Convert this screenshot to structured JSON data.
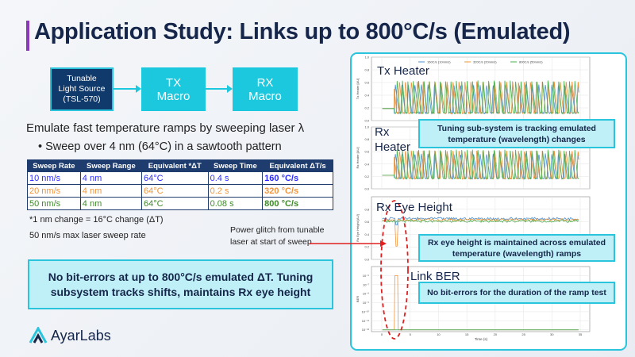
{
  "title": "Application Study: Links up to 800°C/s (Emulated)",
  "diagram": {
    "source": "Tunable\nLight Source\n(TSL-570)",
    "tx": "TX\nMacro",
    "rx": "RX\nMacro"
  },
  "intro": "Emulate fast temperature ramps by sweeping laser λ",
  "bullet": "• Sweep over 4 nm (64°C) in a sawtooth pattern",
  "table": {
    "headers": [
      "Sweep Rate",
      "Sweep Range",
      "Equivalent *ΔT",
      "Sweep Time",
      "Equivalent ΔT/s"
    ],
    "rows": [
      {
        "color": "#2b2bff",
        "cells": [
          "10 nm/s",
          "4 nm",
          "64°C",
          "0.4 s",
          "160 °C/s"
        ]
      },
      {
        "color": "#f0953a",
        "cells": [
          "20 nm/s",
          "4 nm",
          "64°C",
          "0.2 s",
          "320 °C/s"
        ]
      },
      {
        "color": "#3f8a2a",
        "cells": [
          "50 nm/s",
          "4 nm",
          "64°C",
          "0.08 s",
          "800 °C/s"
        ]
      }
    ]
  },
  "footnote1": "*1 nm change = 16°C change (ΔT)",
  "footnote2": "50 nm/s max laser sweep rate",
  "glitch_note": "Power glitch from tunable\nlaser at start of sweep",
  "summary": "No bit-errors at up to 800°C/s emulated ΔT. Tuning subsystem tracks shifts, maintains Rx eye height",
  "logo": "AyarLabs",
  "annotations": {
    "tuning": "Tuning sub-system is tracking emulated\ntemperature (wavelength) changes",
    "eye": "Rx eye height is maintained across emulated\ntemperature (wavelength) ramps",
    "ber": "No bit-errors for the duration of the ramp test"
  },
  "plot_labels": {
    "tx": "Tx Heater",
    "rx": "Rx\nHeater",
    "eye": "Rx Eye Height",
    "ber": "Link BER"
  },
  "chart_data": {
    "type": "line",
    "xlabel": "Time (s)",
    "xlim": [
      0,
      35
    ],
    "xticks": [
      0,
      5,
      10,
      15,
      20,
      25,
      30,
      35
    ],
    "legend": "top",
    "series": [
      {
        "name": "160C/s (10nm/s)",
        "color": "#4a8fd0"
      },
      {
        "name": "320C/s (20nm/s)",
        "color": "#f0953a"
      },
      {
        "name": "800C/s (50nm/s)",
        "color": "#4caf50"
      }
    ],
    "subplots": [
      {
        "ylabel": "Tx Heater [AU]",
        "ylim": [
          0,
          1
        ],
        "yticks": [
          "0.0",
          "0.2",
          "0.4",
          "0.6",
          "0.8",
          "1.0"
        ],
        "baseline": 0.19,
        "ramp_start": 2.2,
        "range": [
          0.12,
          0.63
        ]
      },
      {
        "ylabel": "Rx Heater [AU]",
        "ylim": [
          0,
          1
        ],
        "yticks": [
          "0.0",
          "0.2",
          "0.4",
          "0.6",
          "0.8",
          "1.0"
        ],
        "baseline": 0.22,
        "ramp_start": 2.2,
        "range": [
          0.17,
          0.63
        ]
      },
      {
        "ylabel": "Rx Eye Height [AU]",
        "ylim": [
          0,
          1
        ],
        "yticks": [
          "0.0",
          "0.2",
          "0.4",
          "0.6",
          "0.8"
        ],
        "level": 0.65,
        "glitch_min": 0.21
      },
      {
        "ylabel": "BER",
        "scale": "log",
        "ylim": [
          -12.2,
          -5
        ],
        "yticks": [
          "10⁻⁶",
          "10⁻⁷",
          "10⁻⁸",
          "10⁻⁹",
          "10⁻¹⁰",
          "10⁻¹¹",
          "10⁻¹²"
        ],
        "floor": 1e-12,
        "glitch_peak": 1e-06
      }
    ]
  }
}
